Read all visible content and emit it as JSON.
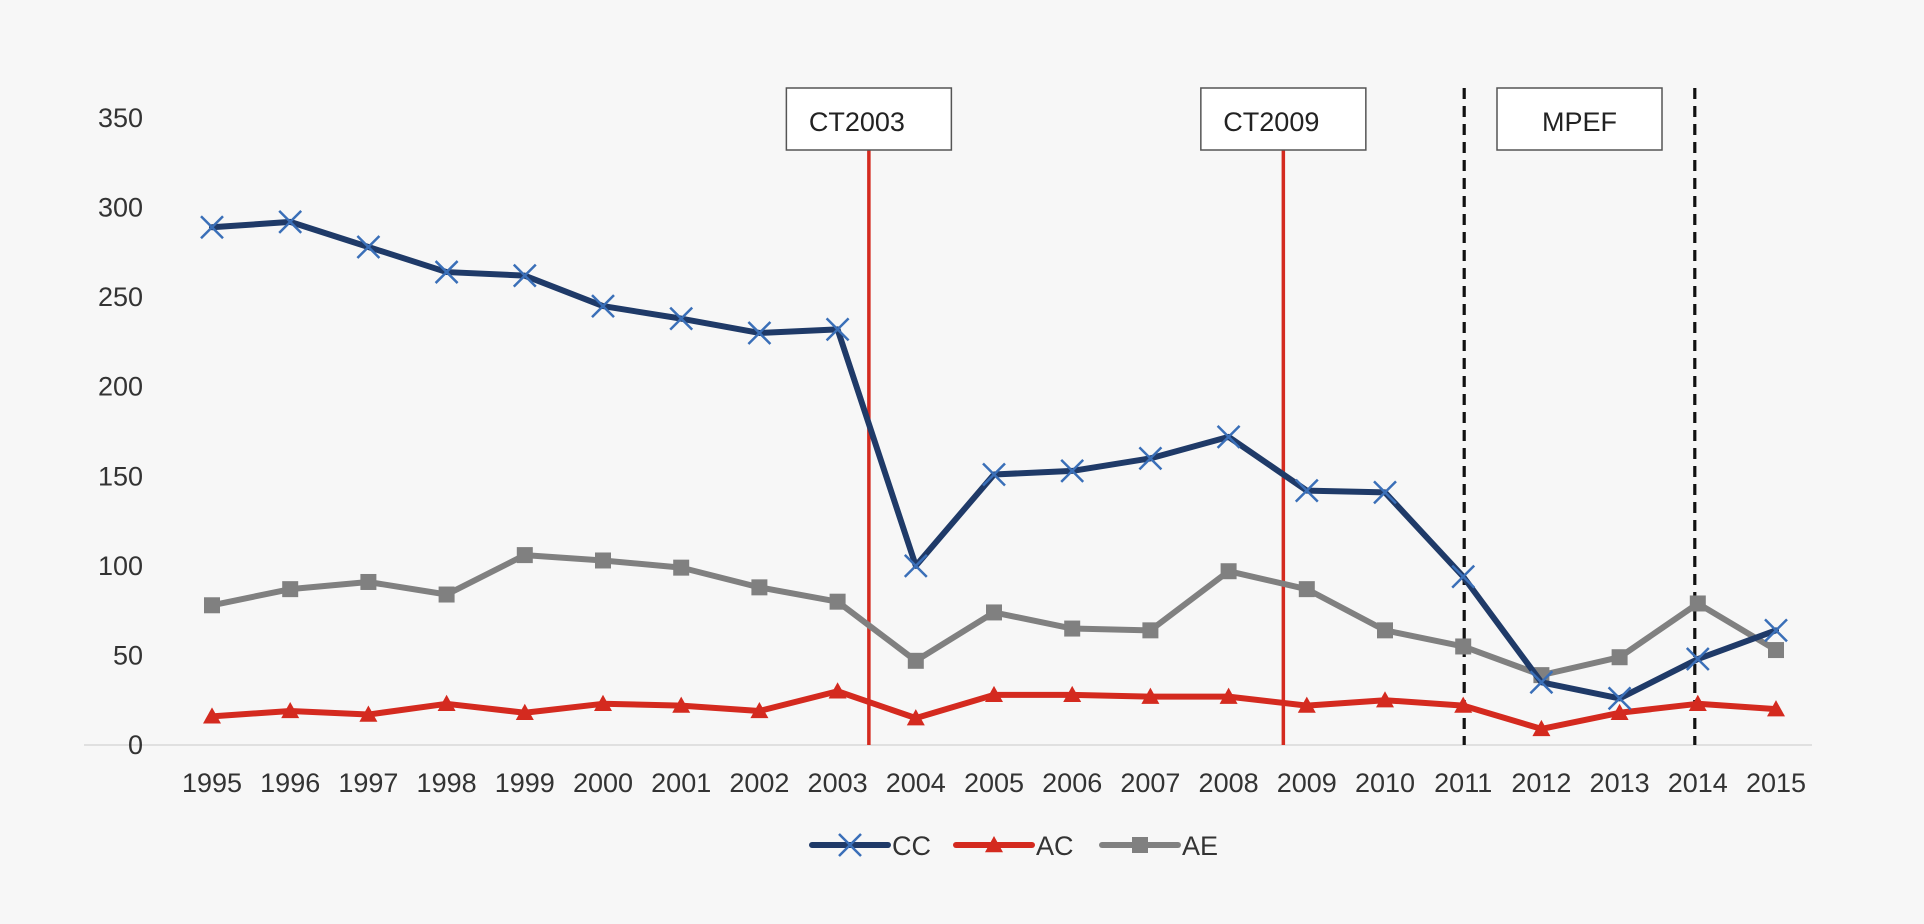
{
  "chart_data": {
    "type": "line",
    "title": "",
    "xlabel": "",
    "ylabel": "",
    "x": [
      "1995",
      "1996",
      "1997",
      "1998",
      "1999",
      "2000",
      "2001",
      "2002",
      "2003",
      "2004",
      "2005",
      "2006",
      "2007",
      "2008",
      "2009",
      "2010",
      "2011",
      "2012",
      "2013",
      "2014",
      "2015"
    ],
    "ylim": [
      0,
      350
    ],
    "yticks": [
      "0",
      "50",
      "100",
      "150",
      "200",
      "250",
      "300",
      "350"
    ],
    "grid": false,
    "legend_position": "bottom",
    "series": [
      {
        "name": "CC",
        "color": "#1f3a68",
        "marker": "x",
        "values": [
          289,
          292,
          278,
          264,
          262,
          245,
          238,
          230,
          232,
          100,
          151,
          153,
          160,
          172,
          142,
          141,
          94,
          35,
          26,
          48,
          64
        ]
      },
      {
        "name": "AC",
        "color": "#d42a1f",
        "marker": "triangle",
        "values": [
          16,
          19,
          17,
          23,
          18,
          23,
          22,
          19,
          30,
          15,
          28,
          28,
          27,
          27,
          22,
          25,
          22,
          9,
          18,
          23,
          20
        ]
      },
      {
        "name": "AE",
        "color": "#808080",
        "marker": "square",
        "values": [
          78,
          87,
          91,
          84,
          106,
          103,
          99,
          88,
          80,
          47,
          74,
          65,
          64,
          97,
          87,
          64,
          55,
          39,
          49,
          79,
          53
        ]
      }
    ],
    "annotations": [
      {
        "label": "CT2003",
        "kind": "vline-solid",
        "color": "#d42a1f",
        "at": "2003.4"
      },
      {
        "label": "CT2009",
        "kind": "vline-solid",
        "color": "#d42a1f",
        "at": "2008.7"
      },
      {
        "label": "MPEF",
        "kind": "dashed-interval",
        "color": "#111111",
        "from": "2011",
        "to": "2014"
      }
    ]
  }
}
